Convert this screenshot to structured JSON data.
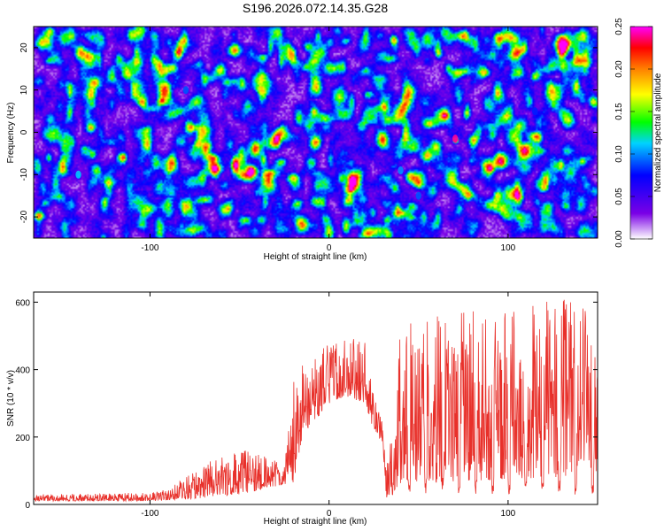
{
  "title": "S196.2026.072.14.35.G28",
  "chart_data": [
    {
      "type": "heatmap",
      "title": "S196.2026.072.14.35.G28",
      "xlabel": "Height of straight line (km)",
      "ylabel": "Frequency (Hz)",
      "xlim": [
        -165,
        150
      ],
      "ylim": [
        -25,
        25
      ],
      "xticks": [
        -100,
        0,
        100
      ],
      "yticks": [
        -20,
        -10,
        0,
        10,
        20
      ],
      "colorbar": {
        "label": "Normalized spectral amplitude",
        "range": [
          0,
          0.25
        ],
        "ticks": [
          "0.00",
          "0.05",
          "0.10",
          "0.15",
          "0.20",
          "0.25"
        ],
        "colors": [
          "#ffffff",
          "#7a00e6",
          "#0000ff",
          "#00d2ff",
          "#00ff00",
          "#ffff00",
          "#ff8000",
          "#ff0000",
          "#ff00ff"
        ]
      },
      "background_level": 0.03,
      "peaks": [
        {
          "x": 70.5,
          "y": -1.5,
          "value": 0.24
        },
        {
          "x": -140,
          "y": -10,
          "value": 0.11
        },
        {
          "x": 40,
          "y": -9,
          "value": 0.1
        },
        {
          "x": 50,
          "y": -15,
          "value": 0.09
        },
        {
          "x": -80,
          "y": 10,
          "value": 0.09
        },
        {
          "x": 115,
          "y": 5,
          "value": 0.08
        }
      ]
    },
    {
      "type": "line",
      "xlabel": "Height of straight line (km)",
      "ylabel": "SNR (10 * v/v)",
      "xlim": [
        -165,
        150
      ],
      "ylim": [
        0,
        630
      ],
      "xticks": [
        -100,
        0,
        100
      ],
      "yticks": [
        0,
        200,
        400,
        600
      ],
      "color": "#e8302a",
      "envelope": {
        "x": [
          -165,
          -100,
          -90,
          -80,
          -60,
          -50,
          -40,
          -25,
          -20,
          -15,
          0,
          10,
          20,
          25,
          30,
          32,
          40,
          50,
          60,
          80,
          100,
          110,
          120,
          130,
          140,
          150
        ],
        "low": [
          10,
          10,
          12,
          15,
          25,
          30,
          40,
          60,
          60,
          200,
          300,
          320,
          300,
          220,
          180,
          20,
          60,
          60,
          65,
          70,
          75,
          75,
          80,
          80,
          90,
          95
        ],
        "high": [
          30,
          35,
          45,
          80,
          150,
          170,
          150,
          120,
          380,
          450,
          480,
          500,
          480,
          320,
          250,
          100,
          550,
          550,
          560,
          580,
          580,
          590,
          600,
          610,
          620,
          620
        ]
      },
      "repeat_dips": {
        "from": 35,
        "to": 150,
        "period": 9.3,
        "floor": 45
      }
    }
  ]
}
